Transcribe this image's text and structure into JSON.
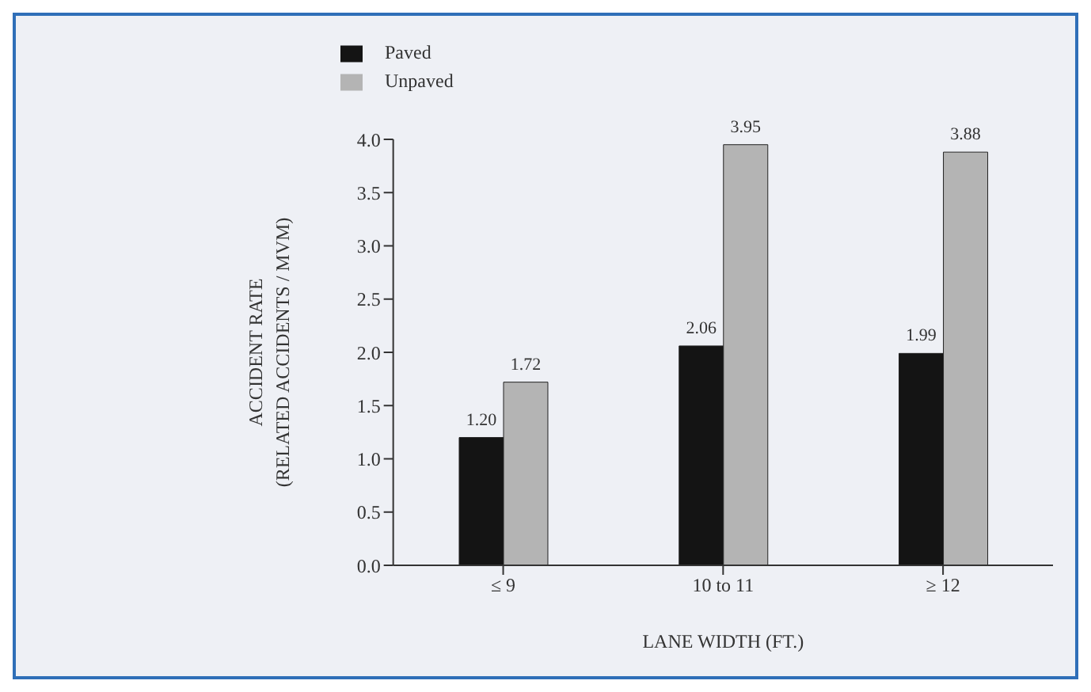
{
  "chart_data": {
    "type": "bar",
    "xlabel": "LANE WIDTH (FT.)",
    "ylabel": "ACCIDENT RATE\n(RELATED ACCIDENTS / MVM)",
    "categories": [
      "≤ 9",
      "10 to 11",
      "≥ 12"
    ],
    "series": [
      {
        "name": "Paved",
        "color": "#141414",
        "values": [
          1.2,
          2.06,
          1.99
        ],
        "value_labels": [
          "1.20",
          "2.06",
          "1.99"
        ]
      },
      {
        "name": "Unpaved",
        "color": "#b4b4b4",
        "values": [
          1.72,
          3.95,
          3.88
        ],
        "value_labels": [
          "1.72",
          "3.95",
          "3.88"
        ]
      }
    ],
    "ylim": [
      0,
      4.0
    ],
    "yticks": [
      {
        "value": 0,
        "label": "0.0"
      },
      {
        "value": 0.5,
        "label": "0.5"
      },
      {
        "value": 1,
        "label": "1.0"
      },
      {
        "value": 1.5,
        "label": "1.5"
      },
      {
        "value": 2,
        "label": "2.0"
      },
      {
        "value": 2.5,
        "label": "2.5"
      },
      {
        "value": 3,
        "label": "3.0"
      },
      {
        "value": 3.5,
        "label": "3.5"
      },
      {
        "value": 4,
        "label": "4.0"
      }
    ],
    "grid": false,
    "legend": "top left"
  }
}
